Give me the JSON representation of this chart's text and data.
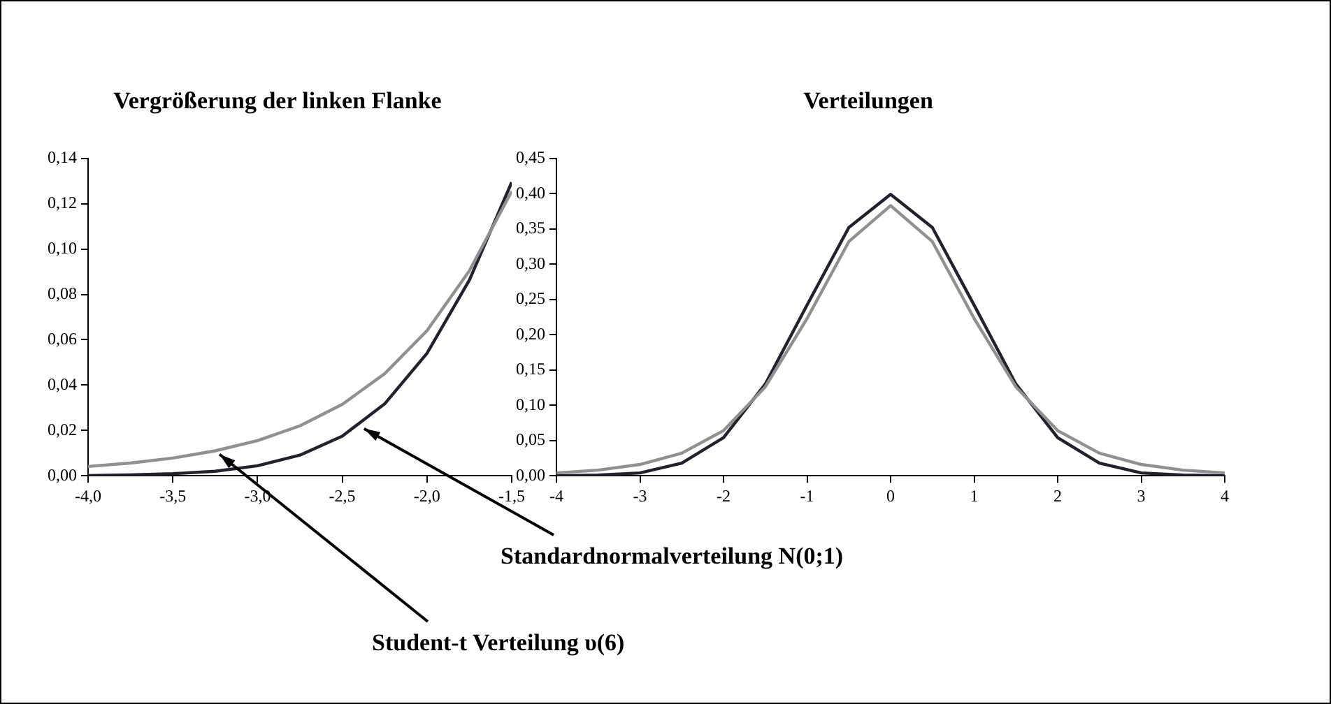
{
  "chart_data": [
    {
      "type": "line",
      "title": "Vergrößerung der linken Flanke",
      "x": [
        -4,
        -3.75,
        -3.5,
        -3.25,
        -3,
        -2.75,
        -2.5,
        -2.25,
        -2,
        -1.75,
        -1.5
      ],
      "series": [
        {
          "color": "#909090",
          "values": [
            0.0041,
            0.0056,
            0.0078,
            0.011,
            0.0155,
            0.022,
            0.0315,
            0.045,
            0.064,
            0.0904,
            0.1255
          ]
        },
        {
          "color": "#22222e",
          "values": [
            0.0001,
            0.0004,
            0.0009,
            0.002,
            0.0044,
            0.0091,
            0.0175,
            0.0317,
            0.054,
            0.0863,
            0.1295
          ]
        }
      ],
      "xlim": [
        -4,
        -1.5
      ],
      "xticks": [
        {
          "value": -4,
          "label": "-4,0"
        },
        {
          "value": -3.5,
          "label": "-3,5"
        },
        {
          "value": -3,
          "label": "-3,0"
        },
        {
          "value": -2.5,
          "label": "-2,5"
        },
        {
          "value": -2,
          "label": "-2,0"
        },
        {
          "value": -1.5,
          "label": "-1,5"
        }
      ],
      "ylim": [
        0,
        0.14
      ],
      "yticks": [
        {
          "value": 0,
          "label": "0,00"
        },
        {
          "value": 0.02,
          "label": "0,02"
        },
        {
          "value": 0.04,
          "label": "0,04"
        },
        {
          "value": 0.06,
          "label": "0,06"
        },
        {
          "value": 0.08,
          "label": "0,08"
        },
        {
          "value": 0.1,
          "label": "0,10"
        },
        {
          "value": 0.12,
          "label": "0,12"
        },
        {
          "value": 0.14,
          "label": "0,14"
        }
      ],
      "marker": "none",
      "line_style": "solid",
      "legend": false,
      "annotations": [
        {
          "text": "Standardnormalverteilung N(0;1)",
          "x": -2.4,
          "y": 0.022
        },
        {
          "text": "Student-t Verteilung υ(6)",
          "x": -3.25,
          "y": 0.011
        }
      ]
    },
    {
      "type": "line",
      "title": "Verteilungen",
      "x": [
        -4,
        -3.5,
        -3,
        -2.5,
        -2,
        -1.5,
        -1,
        -0.5,
        0,
        0.5,
        1,
        1.5,
        2,
        2.5,
        3,
        3.5,
        4
      ],
      "series": [
        {
          "color": "#909090",
          "values": [
            0.004,
            0.008,
            0.016,
            0.032,
            0.064,
            0.126,
            0.223,
            0.332,
            0.383,
            0.332,
            0.223,
            0.126,
            0.064,
            0.032,
            0.016,
            0.008,
            0.004
          ]
        },
        {
          "color": "#22222e",
          "values": [
            0.0,
            0.001,
            0.004,
            0.018,
            0.054,
            0.13,
            0.242,
            0.352,
            0.399,
            0.352,
            0.242,
            0.13,
            0.054,
            0.018,
            0.004,
            0.001,
            0.0
          ]
        }
      ],
      "xlim": [
        -4,
        4
      ],
      "xticks": [
        -4,
        -3,
        -2,
        -1,
        0,
        1,
        2,
        3,
        4
      ],
      "ylim": [
        0,
        0.45
      ],
      "yticks": [
        {
          "value": 0,
          "label": "0,00"
        },
        {
          "value": 0.05,
          "label": "0,05"
        },
        {
          "value": 0.1,
          "label": "0,10"
        },
        {
          "value": 0.15,
          "label": "0,15"
        },
        {
          "value": 0.2,
          "label": "0,20"
        },
        {
          "value": 0.25,
          "label": "0,25"
        },
        {
          "value": 0.3,
          "label": "0,30"
        },
        {
          "value": 0.35,
          "label": "0,35"
        },
        {
          "value": 0.4,
          "label": "0,40"
        },
        {
          "value": 0.45,
          "label": "0,45"
        }
      ],
      "marker": "none",
      "line_style": "solid",
      "legend": false
    }
  ]
}
